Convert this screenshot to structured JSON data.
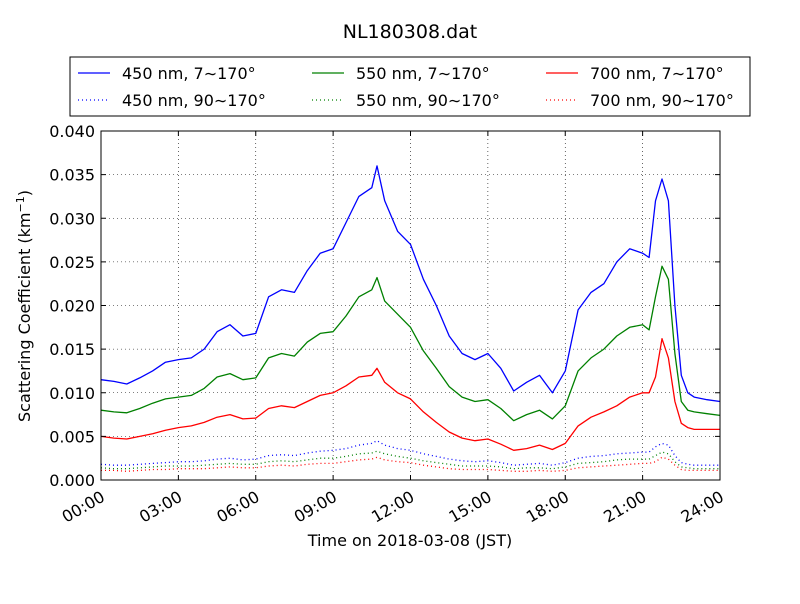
{
  "chart_data": {
    "type": "line",
    "title": "NL180308.dat",
    "xlabel": "Time on 2018-03-08 (JST)",
    "ylabel_main": "Scattering Coefficient (km",
    "ylabel_sup": "−1",
    "ylabel_close": ")",
    "xlim_hours": [
      0,
      24
    ],
    "ylim": [
      0,
      0.04
    ],
    "x_ticks": [
      {
        "hour": 0,
        "label": "00:00"
      },
      {
        "hour": 3,
        "label": "03:00"
      },
      {
        "hour": 6,
        "label": "06:00"
      },
      {
        "hour": 9,
        "label": "09:00"
      },
      {
        "hour": 12,
        "label": "12:00"
      },
      {
        "hour": 15,
        "label": "15:00"
      },
      {
        "hour": 18,
        "label": "18:00"
      },
      {
        "hour": 21,
        "label": "21:00"
      },
      {
        "hour": 24,
        "label": "24:00"
      }
    ],
    "y_ticks": [
      {
        "value": 0.0,
        "label": "0.000"
      },
      {
        "value": 0.005,
        "label": "0.005"
      },
      {
        "value": 0.01,
        "label": "0.010"
      },
      {
        "value": 0.015,
        "label": "0.015"
      },
      {
        "value": 0.02,
        "label": "0.020"
      },
      {
        "value": 0.025,
        "label": "0.025"
      },
      {
        "value": 0.03,
        "label": "0.030"
      },
      {
        "value": 0.035,
        "label": "0.035"
      },
      {
        "value": 0.04,
        "label": "0.040"
      }
    ],
    "grid": true,
    "legend_position": "top",
    "x_hours": [
      0,
      0.5,
      1,
      1.5,
      2,
      2.5,
      3,
      3.5,
      4,
      4.5,
      5,
      5.5,
      6,
      6.5,
      7,
      7.5,
      8,
      8.5,
      9,
      9.5,
      10,
      10.5,
      10.7,
      11,
      11.5,
      12,
      12.5,
      13,
      13.5,
      14,
      14.5,
      15,
      15.5,
      16,
      16.5,
      17,
      17.5,
      18,
      18.5,
      19,
      19.5,
      20,
      20.5,
      21,
      21.25,
      21.5,
      21.75,
      22,
      22.25,
      22.5,
      22.75,
      23,
      23.5,
      24
    ],
    "series": [
      {
        "name": "450 nm, 7∼170°",
        "color": "#0000ff",
        "style": "solid",
        "values": [
          0.0115,
          0.0113,
          0.011,
          0.0117,
          0.0125,
          0.0135,
          0.0138,
          0.014,
          0.015,
          0.017,
          0.0178,
          0.0165,
          0.0168,
          0.021,
          0.0218,
          0.0215,
          0.024,
          0.026,
          0.0265,
          0.0295,
          0.0325,
          0.0335,
          0.036,
          0.032,
          0.0285,
          0.027,
          0.023,
          0.02,
          0.0165,
          0.0145,
          0.0138,
          0.0145,
          0.0128,
          0.0102,
          0.0112,
          0.012,
          0.01,
          0.0125,
          0.0195,
          0.0215,
          0.0225,
          0.025,
          0.0265,
          0.026,
          0.0255,
          0.032,
          0.0345,
          0.032,
          0.02,
          0.012,
          0.01,
          0.0095,
          0.0092,
          0.009
        ]
      },
      {
        "name": "550 nm, 7∼170°",
        "color": "#008000",
        "style": "solid",
        "values": [
          0.008,
          0.0078,
          0.0077,
          0.0082,
          0.0088,
          0.0093,
          0.0095,
          0.0097,
          0.0105,
          0.0118,
          0.0122,
          0.0115,
          0.0117,
          0.014,
          0.0145,
          0.0142,
          0.0158,
          0.0168,
          0.017,
          0.0188,
          0.021,
          0.0218,
          0.0232,
          0.0205,
          0.019,
          0.0175,
          0.0148,
          0.0128,
          0.0107,
          0.0095,
          0.009,
          0.0092,
          0.0082,
          0.0068,
          0.0075,
          0.008,
          0.007,
          0.0085,
          0.0125,
          0.014,
          0.015,
          0.0165,
          0.0175,
          0.0178,
          0.0172,
          0.021,
          0.0245,
          0.023,
          0.0145,
          0.009,
          0.008,
          0.0078,
          0.0076,
          0.0074
        ]
      },
      {
        "name": "700 nm, 7∼170°",
        "color": "#ff0000",
        "style": "solid",
        "values": [
          0.005,
          0.0048,
          0.0047,
          0.005,
          0.0053,
          0.0057,
          0.006,
          0.0062,
          0.0066,
          0.0072,
          0.0075,
          0.007,
          0.0071,
          0.0082,
          0.0085,
          0.0083,
          0.009,
          0.0097,
          0.01,
          0.0108,
          0.0118,
          0.012,
          0.0128,
          0.0112,
          0.01,
          0.0093,
          0.0078,
          0.0066,
          0.0055,
          0.0048,
          0.0045,
          0.0047,
          0.0041,
          0.0034,
          0.0036,
          0.004,
          0.0035,
          0.0042,
          0.0062,
          0.0072,
          0.0078,
          0.0085,
          0.0095,
          0.01,
          0.01,
          0.0118,
          0.0162,
          0.014,
          0.009,
          0.0065,
          0.006,
          0.0058,
          0.0058,
          0.0058
        ]
      },
      {
        "name": "450 nm, 90∼170°",
        "color": "#0000ff",
        "style": "dotted",
        "values": [
          0.0018,
          0.0017,
          0.0017,
          0.0018,
          0.0019,
          0.002,
          0.0021,
          0.0021,
          0.0022,
          0.0024,
          0.0025,
          0.0023,
          0.0024,
          0.0028,
          0.0029,
          0.0028,
          0.0031,
          0.0033,
          0.0034,
          0.0036,
          0.004,
          0.0042,
          0.0045,
          0.004,
          0.0036,
          0.0034,
          0.003,
          0.0027,
          0.0024,
          0.0022,
          0.0021,
          0.0022,
          0.002,
          0.0017,
          0.0018,
          0.0019,
          0.0017,
          0.002,
          0.0025,
          0.0027,
          0.0028,
          0.003,
          0.0031,
          0.0032,
          0.0032,
          0.0038,
          0.0042,
          0.004,
          0.0028,
          0.002,
          0.0018,
          0.0017,
          0.0017,
          0.0017
        ]
      },
      {
        "name": "550 nm, 90∼170°",
        "color": "#008000",
        "style": "dotted",
        "values": [
          0.0014,
          0.0013,
          0.0013,
          0.0014,
          0.0015,
          0.0016,
          0.0016,
          0.0016,
          0.0017,
          0.0018,
          0.0019,
          0.0018,
          0.0018,
          0.0021,
          0.0022,
          0.0021,
          0.0023,
          0.0025,
          0.0025,
          0.0027,
          0.003,
          0.0031,
          0.0033,
          0.003,
          0.0027,
          0.0025,
          0.0022,
          0.002,
          0.0018,
          0.0016,
          0.0016,
          0.0016,
          0.0015,
          0.0013,
          0.0014,
          0.0014,
          0.0013,
          0.0015,
          0.0019,
          0.002,
          0.0021,
          0.0023,
          0.0024,
          0.0024,
          0.0024,
          0.0028,
          0.0032,
          0.003,
          0.0021,
          0.0015,
          0.0014,
          0.0013,
          0.0013,
          0.0013
        ]
      },
      {
        "name": "700 nm, 90∼170°",
        "color": "#ff0000",
        "style": "dotted",
        "values": [
          0.0011,
          0.0011,
          0.001,
          0.0011,
          0.0012,
          0.0012,
          0.0013,
          0.0013,
          0.0013,
          0.0014,
          0.0015,
          0.0014,
          0.0014,
          0.0016,
          0.0017,
          0.0016,
          0.0018,
          0.0019,
          0.0019,
          0.0021,
          0.0023,
          0.0024,
          0.0026,
          0.0023,
          0.0021,
          0.002,
          0.0017,
          0.0015,
          0.0013,
          0.0012,
          0.0012,
          0.0012,
          0.0011,
          0.001,
          0.001,
          0.0011,
          0.001,
          0.0011,
          0.0014,
          0.0015,
          0.0016,
          0.0017,
          0.0018,
          0.0019,
          0.0019,
          0.0021,
          0.0026,
          0.0024,
          0.0017,
          0.0012,
          0.0011,
          0.0011,
          0.0011,
          0.0011
        ]
      }
    ]
  }
}
